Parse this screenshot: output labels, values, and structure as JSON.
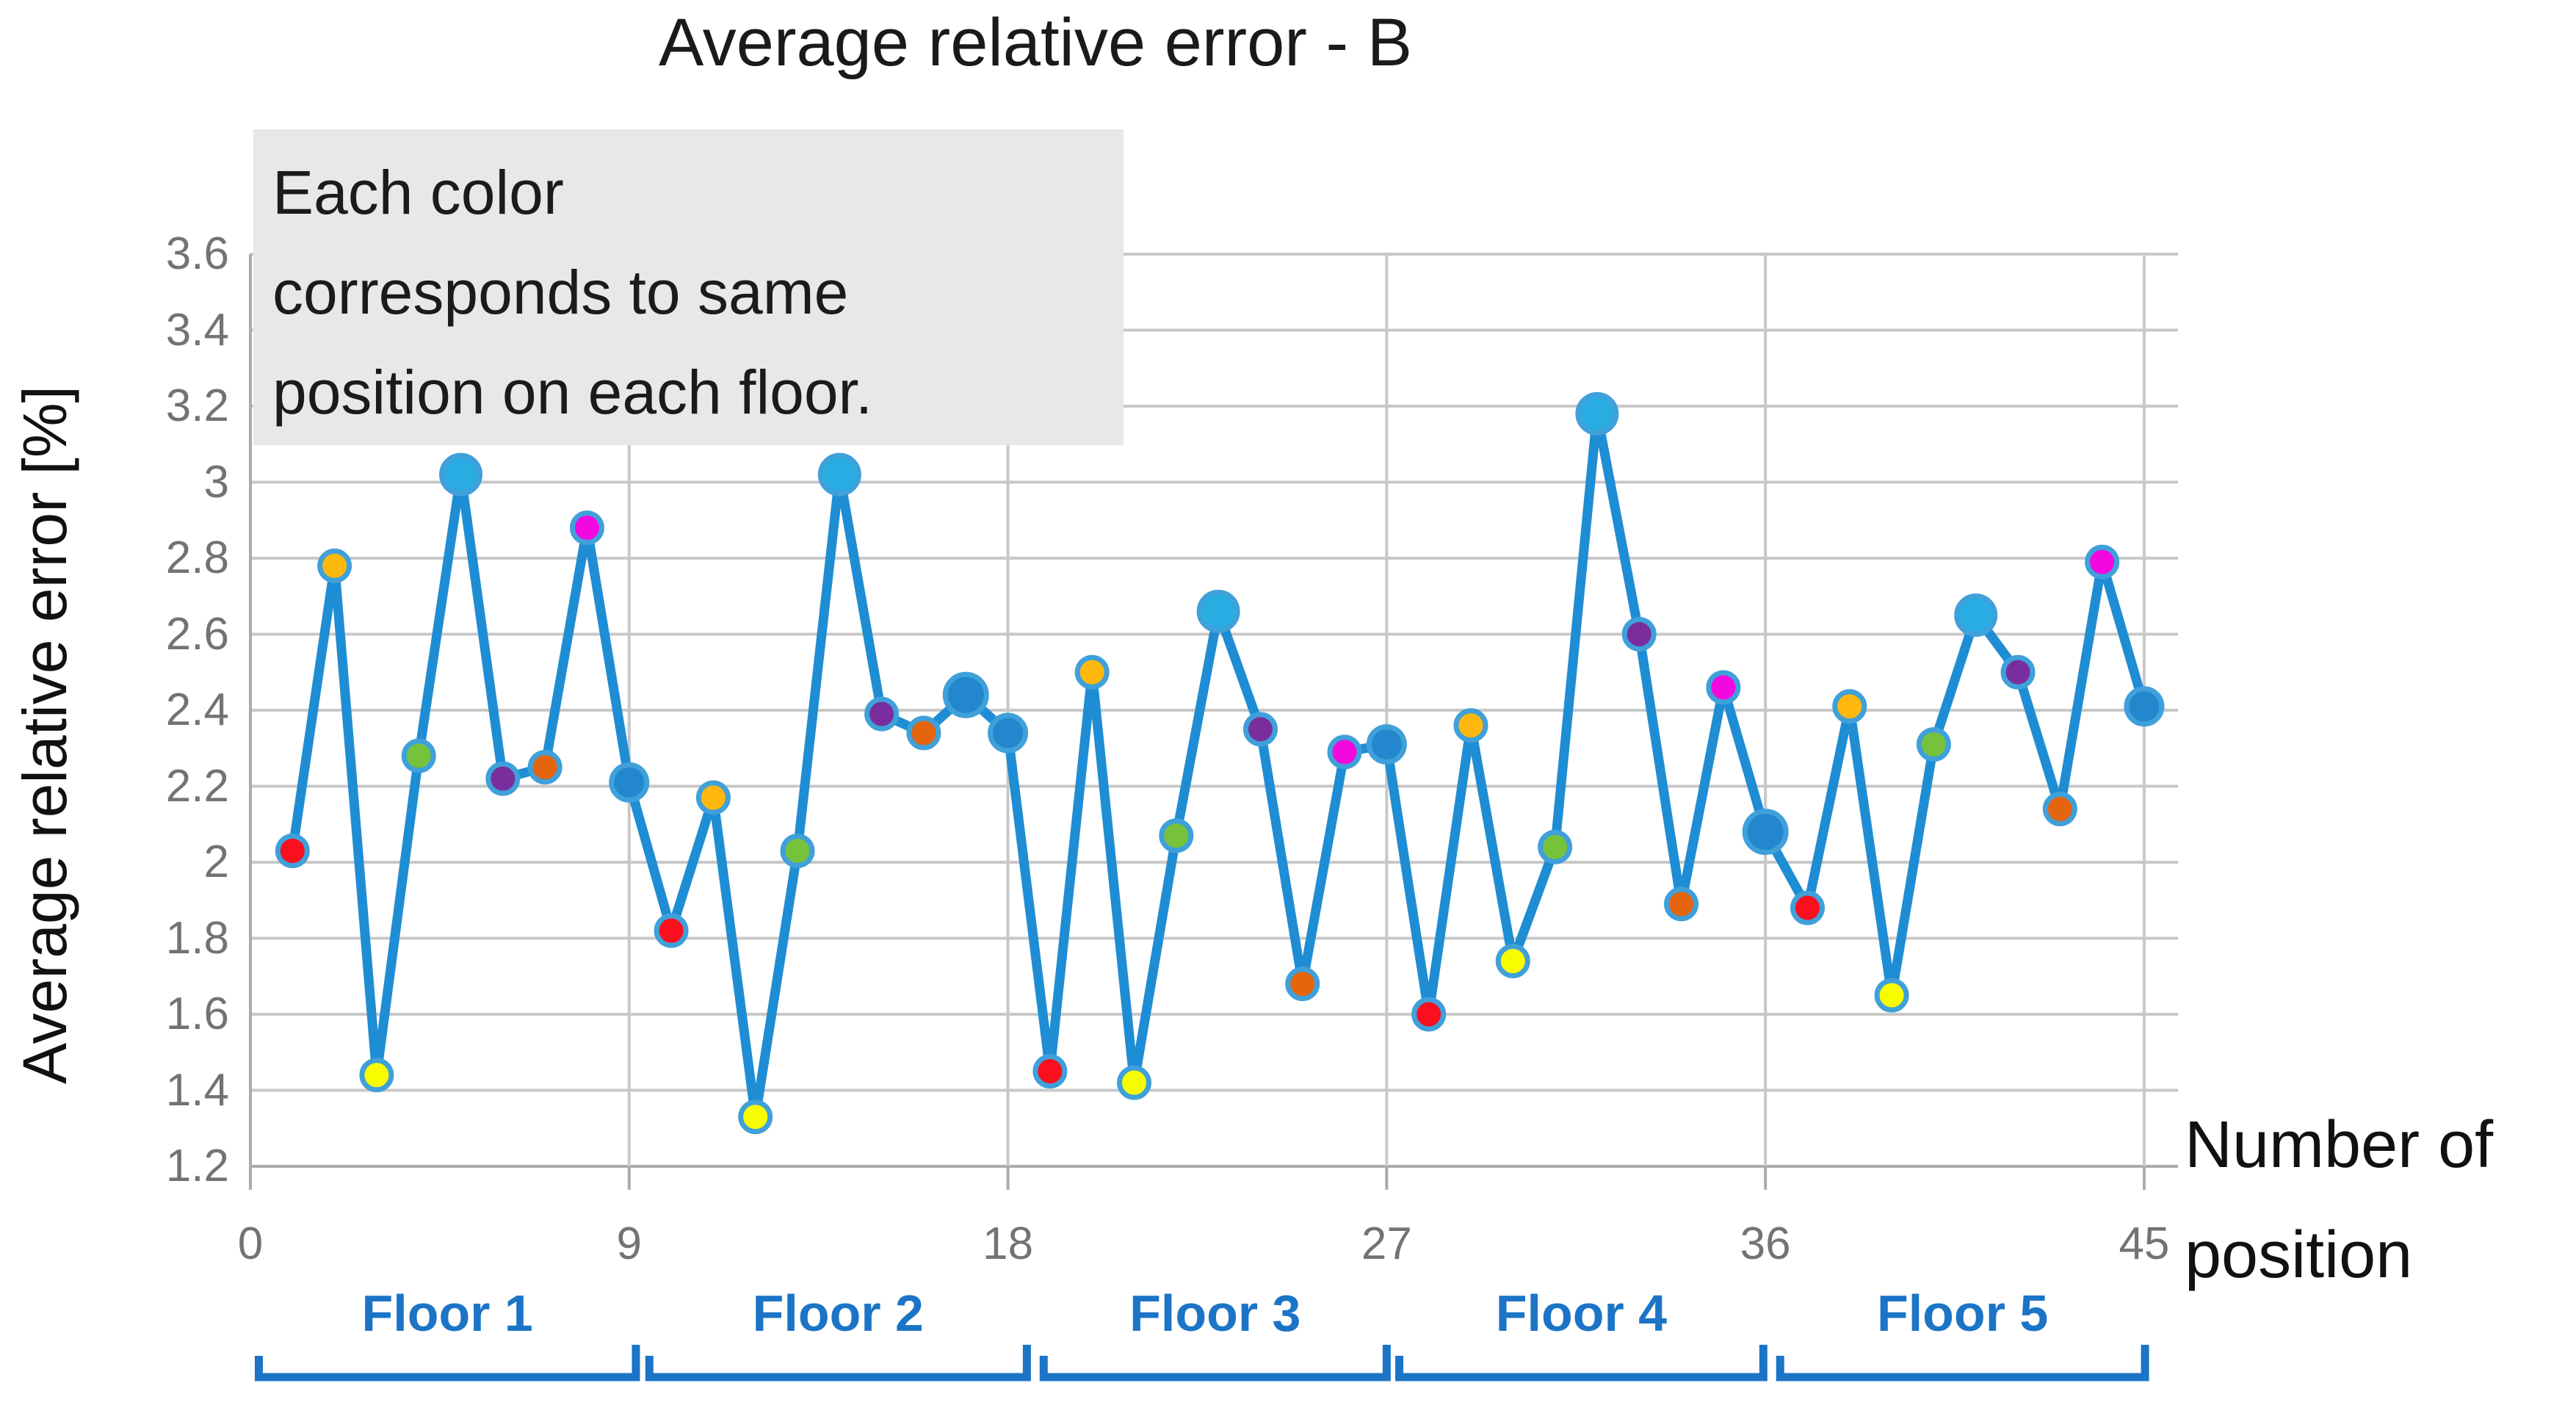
{
  "title": "Average relative error - B",
  "y_axis": {
    "title": "Average relative error [%]",
    "ticks": [
      "3.6",
      "3.4",
      "3.2",
      "3",
      "2.8",
      "2.6",
      "2.4",
      "2.2",
      "2",
      "1.8",
      "1.6",
      "1.4",
      "1.2"
    ],
    "tick_values": [
      3.6,
      3.4,
      3.2,
      3.0,
      2.8,
      2.6,
      2.4,
      2.2,
      2.0,
      1.8,
      1.6,
      1.4,
      1.2
    ],
    "min": 1.2,
    "max": 3.6,
    "step": 0.2
  },
  "x_axis": {
    "title_lines": [
      "Number of",
      "position"
    ],
    "ticks": [
      "0",
      "9",
      "18",
      "27",
      "36",
      "45"
    ],
    "tick_values": [
      0,
      9,
      18,
      27,
      36,
      45
    ],
    "min": 0,
    "max": 45
  },
  "annotation": {
    "lines": [
      "Each color",
      "corresponds to same",
      "position on each floor."
    ]
  },
  "floors": {
    "labels": [
      "Floor 1",
      "Floor 2",
      "Floor 3",
      "Floor 4",
      "Floor 5"
    ],
    "spans": [
      [
        0.2,
        9.16
      ],
      [
        9.48,
        18.45
      ],
      [
        18.85,
        27.0
      ],
      [
        27.3,
        35.95
      ],
      [
        36.35,
        45.02
      ]
    ]
  },
  "chart_data": {
    "type": "line",
    "title": "Average relative error - B",
    "xlabel": "Number of position",
    "ylabel": "Average relative error [%]",
    "ylim": [
      1.2,
      3.6
    ],
    "xlim": [
      0,
      45
    ],
    "grid": true,
    "legend": "none",
    "series_note": "Single blue line; marker color encodes the same position index on each floor (9 positions per floor, 5 floors).",
    "x": [
      1,
      2,
      3,
      4,
      5,
      6,
      7,
      8,
      9,
      10,
      11,
      12,
      13,
      14,
      15,
      16,
      17,
      18,
      19,
      20,
      21,
      22,
      23,
      24,
      25,
      26,
      27,
      28,
      29,
      30,
      31,
      32,
      33,
      34,
      35,
      36,
      37,
      38,
      39,
      40,
      41,
      42,
      43,
      44,
      45
    ],
    "values": [
      2.03,
      2.78,
      1.44,
      2.28,
      3.02,
      2.22,
      2.25,
      2.88,
      2.21,
      1.82,
      2.17,
      1.33,
      2.03,
      3.02,
      2.39,
      2.34,
      2.44,
      2.34,
      1.45,
      2.5,
      1.42,
      2.07,
      2.66,
      2.35,
      1.68,
      2.29,
      2.31,
      1.6,
      2.36,
      1.74,
      2.04,
      3.18,
      2.6,
      1.89,
      2.46,
      2.08,
      1.88,
      2.41,
      1.65,
      2.31,
      2.65,
      2.5,
      2.14,
      2.79,
      2.41
    ],
    "point_styles": [
      "red",
      "gold",
      "yellow",
      "green",
      "cyan",
      "purple",
      "orange",
      "magenta",
      "blue",
      "red",
      "gold",
      "yellow",
      "green",
      "cyan",
      "purple",
      "orange",
      "blueLarge",
      "blue",
      "red",
      "gold",
      "yellow",
      "green",
      "cyan",
      "purple",
      "orange",
      "magenta",
      "blue",
      "red",
      "gold",
      "yellow",
      "green",
      "cyan",
      "purple",
      "orange",
      "magenta",
      "blueLarge",
      "red",
      "gold",
      "yellow",
      "green",
      "cyan",
      "purple",
      "orange",
      "magenta",
      "blue"
    ]
  },
  "colors": {
    "line": "#1F8DD3",
    "marker_ring": "#3FA0DA",
    "red": "#FA0F1E",
    "gold": "#FFB80E",
    "yellow": "#F8FC00",
    "green": "#77C23C",
    "cyan": "#29ACE2",
    "purple": "#7A2E9D",
    "orange": "#E4650E",
    "magenta": "#F408E0",
    "blue": "#2287CC",
    "blueLarge": "#2287CC",
    "grid": "#C8C8C8",
    "axis": "#ABABAB",
    "tick_text": "#737373",
    "floor": "#1B74C6",
    "annotation_bg": "#E9E8E8"
  }
}
